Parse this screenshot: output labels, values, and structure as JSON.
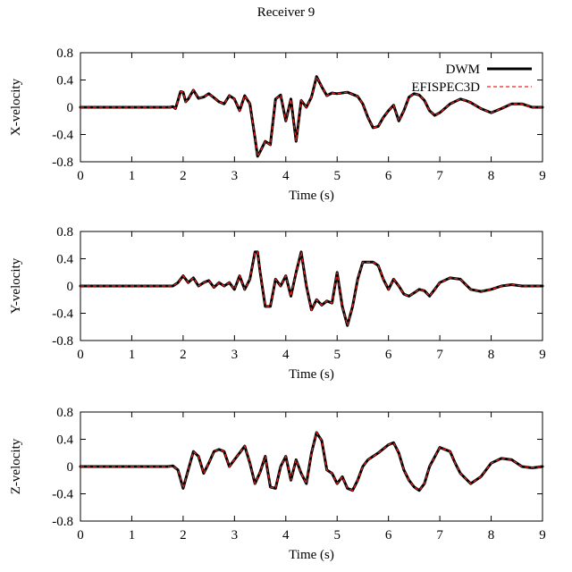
{
  "figure": {
    "title": "Receiver 9"
  },
  "colors": {
    "dwm": "#000000",
    "efispec3d": "#e8241c"
  },
  "chart_data": [
    {
      "type": "line",
      "title": "",
      "xlabel": "Time (s)",
      "ylabel": "X-velocity",
      "xlim": [
        0,
        9
      ],
      "ylim": [
        -0.8,
        0.8
      ],
      "xticks": [
        "0",
        "1",
        "2",
        "3",
        "4",
        "5",
        "6",
        "7",
        "8",
        "9"
      ],
      "yticks": [
        "0.8",
        "0.4",
        "0",
        "-0.4",
        "-0.8"
      ],
      "ytick_values": [
        0.8,
        0.4,
        0,
        -0.4,
        -0.8
      ],
      "grid": false,
      "legend": {
        "placement": "top-right",
        "entries": [
          "DWM",
          "EFISPEC3D"
        ]
      },
      "x": [
        0,
        1.0,
        1.75,
        1.8,
        1.85,
        1.9,
        1.95,
        2.0,
        2.05,
        2.1,
        2.2,
        2.3,
        2.4,
        2.5,
        2.6,
        2.7,
        2.8,
        2.9,
        3.0,
        3.1,
        3.2,
        3.3,
        3.4,
        3.45,
        3.5,
        3.6,
        3.7,
        3.8,
        3.9,
        4.0,
        4.1,
        4.2,
        4.3,
        4.4,
        4.5,
        4.6,
        4.7,
        4.8,
        4.9,
        5.0,
        5.2,
        5.4,
        5.5,
        5.6,
        5.7,
        5.8,
        5.9,
        6.0,
        6.1,
        6.2,
        6.3,
        6.4,
        6.5,
        6.6,
        6.7,
        6.8,
        6.9,
        7.0,
        7.2,
        7.4,
        7.5,
        7.6,
        7.8,
        8.0,
        8.2,
        8.4,
        8.6,
        8.8,
        9.0
      ],
      "series": [
        {
          "name": "DWM",
          "values": [
            0,
            0,
            0,
            0.01,
            -0.02,
            0.1,
            0.23,
            0.22,
            0.08,
            0.12,
            0.25,
            0.13,
            0.15,
            0.2,
            0.14,
            0.08,
            0.05,
            0.17,
            0.12,
            -0.05,
            0.17,
            0.05,
            -0.45,
            -0.72,
            -0.65,
            -0.5,
            -0.55,
            0.12,
            0.18,
            -0.2,
            0.12,
            -0.5,
            0.1,
            0.0,
            0.15,
            0.45,
            0.3,
            0.17,
            0.21,
            0.2,
            0.22,
            0.16,
            0.05,
            -0.15,
            -0.3,
            -0.28,
            -0.15,
            -0.05,
            0.03,
            -0.2,
            -0.05,
            0.15,
            0.2,
            0.18,
            0.1,
            -0.05,
            -0.12,
            -0.08,
            0.05,
            0.12,
            0.1,
            0.07,
            -0.02,
            -0.08,
            -0.02,
            0.05,
            0.05,
            0.0,
            0.0
          ]
        },
        {
          "name": "EFISPEC3D",
          "values": [
            0,
            0,
            0,
            0.01,
            -0.02,
            0.1,
            0.23,
            0.22,
            0.08,
            0.12,
            0.25,
            0.13,
            0.15,
            0.2,
            0.14,
            0.08,
            0.05,
            0.17,
            0.12,
            -0.05,
            0.17,
            0.05,
            -0.45,
            -0.72,
            -0.65,
            -0.5,
            -0.55,
            0.12,
            0.18,
            -0.2,
            0.12,
            -0.5,
            0.1,
            0.0,
            0.15,
            0.45,
            0.3,
            0.17,
            0.21,
            0.2,
            0.22,
            0.16,
            0.05,
            -0.15,
            -0.3,
            -0.28,
            -0.15,
            -0.05,
            0.03,
            -0.2,
            -0.05,
            0.15,
            0.2,
            0.18,
            0.1,
            -0.05,
            -0.12,
            -0.08,
            0.05,
            0.12,
            0.1,
            0.07,
            -0.02,
            -0.08,
            -0.02,
            0.05,
            0.05,
            0.0,
            0.0
          ]
        }
      ]
    },
    {
      "type": "line",
      "title": "",
      "xlabel": "Time (s)",
      "ylabel": "Y-velocity",
      "xlim": [
        0,
        9
      ],
      "ylim": [
        -0.8,
        0.8
      ],
      "xticks": [
        "0",
        "1",
        "2",
        "3",
        "4",
        "5",
        "6",
        "7",
        "8",
        "9"
      ],
      "yticks": [
        "0.8",
        "0.4",
        "0",
        "-0.4",
        "-0.8"
      ],
      "ytick_values": [
        0.8,
        0.4,
        0,
        -0.4,
        -0.8
      ],
      "grid": false,
      "x": [
        0,
        1.0,
        1.8,
        1.9,
        2.0,
        2.1,
        2.2,
        2.3,
        2.4,
        2.5,
        2.6,
        2.7,
        2.8,
        2.9,
        3.0,
        3.1,
        3.2,
        3.3,
        3.4,
        3.45,
        3.5,
        3.6,
        3.7,
        3.8,
        3.9,
        4.0,
        4.1,
        4.2,
        4.3,
        4.4,
        4.5,
        4.6,
        4.7,
        4.8,
        4.9,
        5.0,
        5.1,
        5.2,
        5.3,
        5.4,
        5.5,
        5.6,
        5.7,
        5.8,
        5.9,
        6.0,
        6.1,
        6.2,
        6.3,
        6.4,
        6.5,
        6.6,
        6.7,
        6.8,
        6.9,
        7.0,
        7.2,
        7.4,
        7.6,
        7.8,
        8.0,
        8.2,
        8.4,
        8.6,
        8.8,
        9.0
      ],
      "series": [
        {
          "name": "DWM",
          "values": [
            0,
            0,
            0,
            0.05,
            0.15,
            0.05,
            0.12,
            0.0,
            0.05,
            0.08,
            -0.02,
            0.05,
            0.0,
            0.05,
            -0.05,
            0.15,
            -0.05,
            0.1,
            0.5,
            0.5,
            0.2,
            -0.3,
            -0.3,
            0.1,
            0.0,
            0.15,
            -0.15,
            0.2,
            0.5,
            0.0,
            -0.35,
            -0.2,
            -0.28,
            -0.22,
            -0.25,
            0.2,
            -0.3,
            -0.58,
            -0.3,
            0.1,
            0.35,
            0.35,
            0.35,
            0.3,
            0.1,
            -0.05,
            0.1,
            0.0,
            -0.12,
            -0.15,
            -0.1,
            -0.05,
            -0.07,
            -0.15,
            -0.05,
            0.05,
            0.12,
            0.1,
            -0.05,
            -0.08,
            -0.05,
            0.0,
            0.02,
            0.0,
            0.0,
            0.0
          ]
        },
        {
          "name": "EFISPEC3D",
          "values": [
            0,
            0,
            0,
            0.05,
            0.15,
            0.05,
            0.12,
            0.0,
            0.05,
            0.08,
            -0.02,
            0.05,
            0.0,
            0.05,
            -0.05,
            0.15,
            -0.05,
            0.1,
            0.5,
            0.5,
            0.2,
            -0.3,
            -0.3,
            0.1,
            0.0,
            0.15,
            -0.15,
            0.2,
            0.5,
            0.0,
            -0.35,
            -0.2,
            -0.28,
            -0.22,
            -0.25,
            0.2,
            -0.3,
            -0.58,
            -0.3,
            0.1,
            0.35,
            0.35,
            0.35,
            0.3,
            0.1,
            -0.05,
            0.1,
            0.0,
            -0.12,
            -0.15,
            -0.1,
            -0.05,
            -0.07,
            -0.15,
            -0.05,
            0.05,
            0.12,
            0.1,
            -0.05,
            -0.08,
            -0.05,
            0.0,
            0.02,
            0.0,
            0.0,
            0.0
          ]
        }
      ]
    },
    {
      "type": "line",
      "title": "",
      "xlabel": "Time (s)",
      "ylabel": "Z-velocity",
      "xlim": [
        0,
        9
      ],
      "ylim": [
        -0.8,
        0.8
      ],
      "xticks": [
        "0",
        "1",
        "2",
        "3",
        "4",
        "5",
        "6",
        "7",
        "8",
        "9"
      ],
      "yticks": [
        "0.8",
        "0.4",
        "0",
        "-0.4",
        "-0.8"
      ],
      "ytick_values": [
        0.8,
        0.4,
        0,
        -0.4,
        -0.8
      ],
      "grid": false,
      "x": [
        0,
        1.0,
        1.7,
        1.8,
        1.9,
        2.0,
        2.1,
        2.2,
        2.3,
        2.4,
        2.5,
        2.6,
        2.7,
        2.8,
        2.9,
        3.0,
        3.1,
        3.2,
        3.3,
        3.4,
        3.5,
        3.6,
        3.7,
        3.8,
        3.9,
        4.0,
        4.1,
        4.2,
        4.3,
        4.4,
        4.5,
        4.6,
        4.7,
        4.8,
        4.9,
        5.0,
        5.1,
        5.2,
        5.3,
        5.4,
        5.5,
        5.6,
        5.8,
        6.0,
        6.1,
        6.2,
        6.3,
        6.4,
        6.5,
        6.6,
        6.7,
        6.8,
        7.0,
        7.2,
        7.3,
        7.4,
        7.6,
        7.8,
        8.0,
        8.2,
        8.4,
        8.6,
        8.8,
        9.0
      ],
      "series": [
        {
          "name": "DWM",
          "values": [
            0,
            0,
            0,
            0.01,
            -0.05,
            -0.32,
            -0.05,
            0.22,
            0.15,
            -0.1,
            0.05,
            0.22,
            0.25,
            0.22,
            0.0,
            0.1,
            0.2,
            0.3,
            0.05,
            -0.25,
            -0.08,
            0.15,
            -0.3,
            -0.32,
            0.0,
            0.15,
            -0.2,
            0.1,
            -0.1,
            -0.25,
            0.2,
            0.5,
            0.38,
            -0.05,
            -0.1,
            -0.25,
            -0.15,
            -0.32,
            -0.35,
            -0.2,
            0.0,
            0.1,
            0.2,
            0.32,
            0.35,
            0.2,
            -0.05,
            -0.2,
            -0.3,
            -0.35,
            -0.25,
            0.0,
            0.28,
            0.22,
            0.05,
            -0.1,
            -0.25,
            -0.15,
            0.05,
            0.12,
            0.1,
            0.0,
            -0.02,
            0.0
          ]
        },
        {
          "name": "EFISPEC3D",
          "values": [
            0,
            0,
            0,
            0.01,
            -0.05,
            -0.32,
            -0.05,
            0.22,
            0.15,
            -0.1,
            0.05,
            0.22,
            0.25,
            0.22,
            0.0,
            0.1,
            0.2,
            0.3,
            0.05,
            -0.25,
            -0.08,
            0.15,
            -0.3,
            -0.32,
            0.0,
            0.15,
            -0.2,
            0.1,
            -0.1,
            -0.25,
            0.2,
            0.5,
            0.38,
            -0.05,
            -0.1,
            -0.25,
            -0.15,
            -0.32,
            -0.35,
            -0.2,
            0.0,
            0.1,
            0.2,
            0.32,
            0.35,
            0.2,
            -0.05,
            -0.2,
            -0.3,
            -0.35,
            -0.25,
            0.0,
            0.28,
            0.22,
            0.05,
            -0.1,
            -0.25,
            -0.15,
            0.05,
            0.12,
            0.1,
            0.0,
            -0.02,
            0.0
          ]
        }
      ]
    }
  ]
}
